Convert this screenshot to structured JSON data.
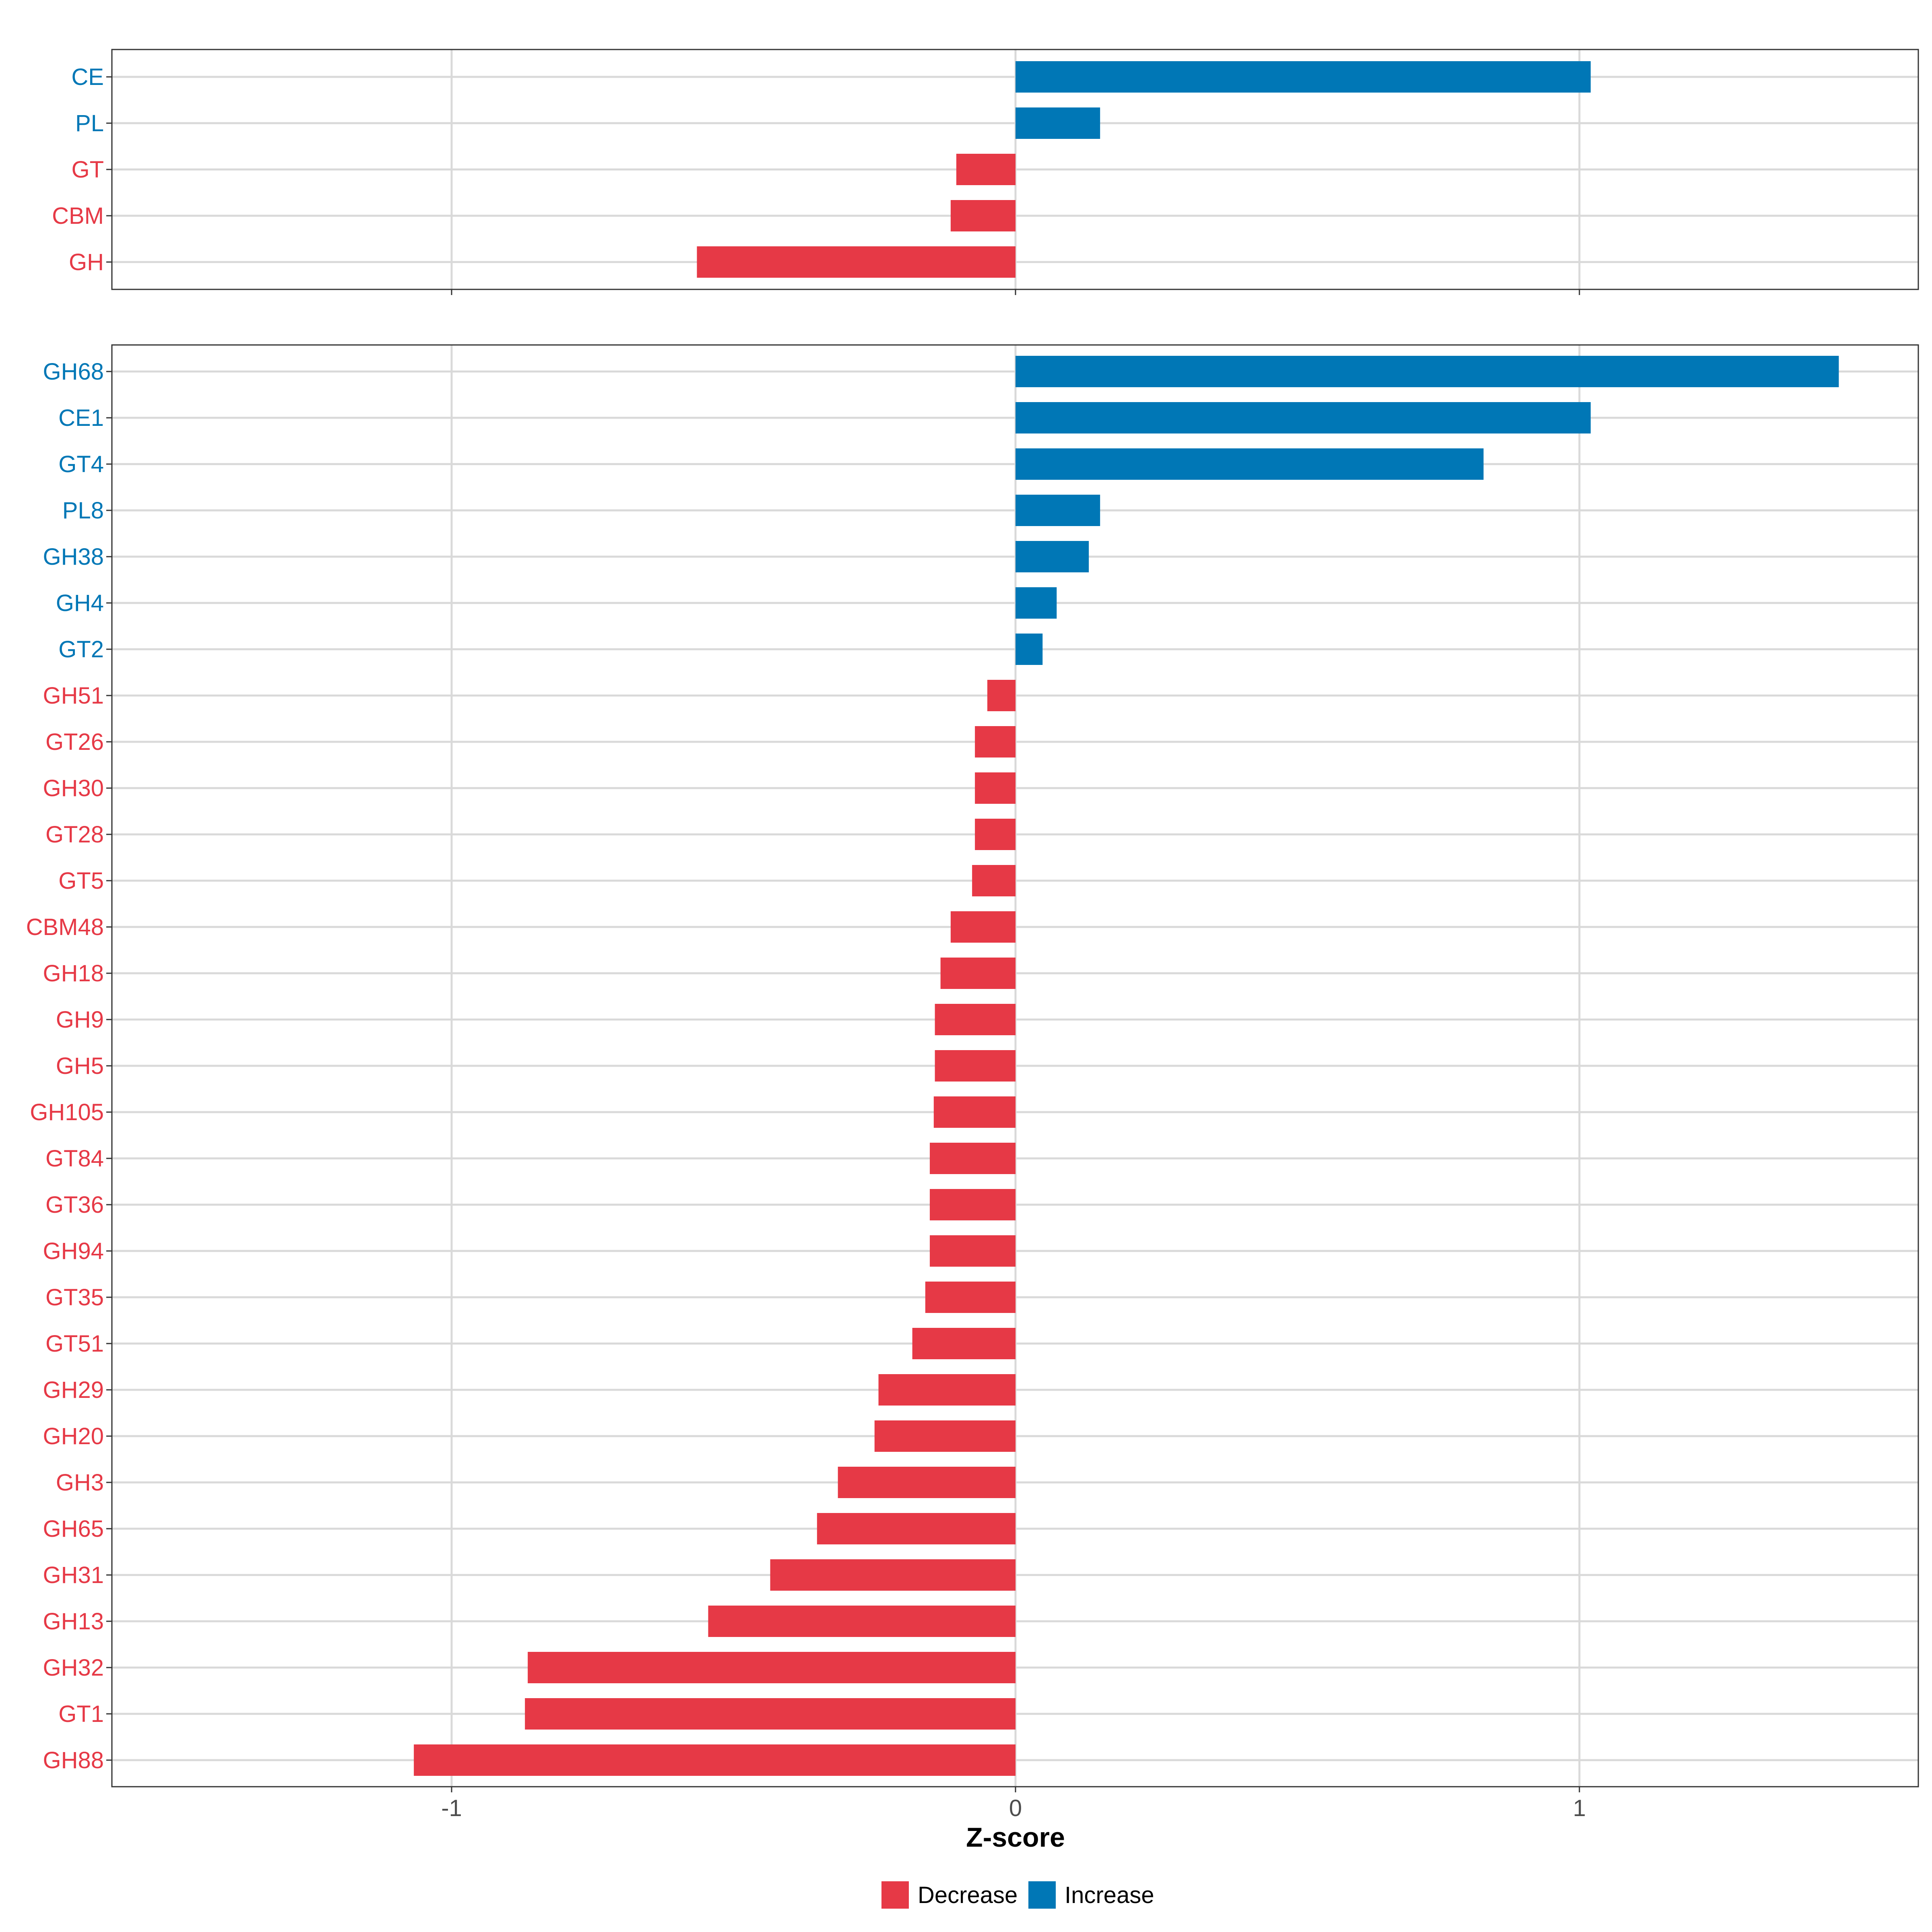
{
  "colors": {
    "decrease": "#e63946",
    "increase": "#0077b6"
  },
  "legend": [
    {
      "key": "decrease",
      "label": "Decrease"
    },
    {
      "key": "increase",
      "label": "Increase"
    }
  ],
  "chart_data": [
    {
      "type": "bar",
      "orientation": "horizontal",
      "panel": "top",
      "xlabel": "",
      "xlim": [
        -1.6,
        1.6
      ],
      "xticks": [
        -1,
        0,
        1
      ],
      "bars": [
        {
          "label": "CE",
          "value": 1.02,
          "group": "increase"
        },
        {
          "label": "PL",
          "value": 0.15,
          "group": "increase"
        },
        {
          "label": "GT",
          "value": -0.105,
          "group": "decrease"
        },
        {
          "label": "CBM",
          "value": -0.115,
          "group": "decrease"
        },
        {
          "label": "GH",
          "value": -0.565,
          "group": "decrease"
        }
      ]
    },
    {
      "type": "bar",
      "orientation": "horizontal",
      "panel": "bottom",
      "xlabel": "Z-score",
      "xlim": [
        -1.6,
        1.6
      ],
      "xticks": [
        -1,
        0,
        1
      ],
      "xtick_labels": [
        "-1",
        "0",
        "1"
      ],
      "bars": [
        {
          "label": "GH68",
          "value": 1.46,
          "group": "increase"
        },
        {
          "label": "CE1",
          "value": 1.02,
          "group": "increase"
        },
        {
          "label": "GT4",
          "value": 0.83,
          "group": "increase"
        },
        {
          "label": "PL8",
          "value": 0.15,
          "group": "increase"
        },
        {
          "label": "GH38",
          "value": 0.13,
          "group": "increase"
        },
        {
          "label": "GH4",
          "value": 0.073,
          "group": "increase"
        },
        {
          "label": "GT2",
          "value": 0.048,
          "group": "increase"
        },
        {
          "label": "GH51",
          "value": -0.05,
          "group": "decrease"
        },
        {
          "label": "GT26",
          "value": -0.072,
          "group": "decrease"
        },
        {
          "label": "GH30",
          "value": -0.072,
          "group": "decrease"
        },
        {
          "label": "GT28",
          "value": -0.072,
          "group": "decrease"
        },
        {
          "label": "GT5",
          "value": -0.077,
          "group": "decrease"
        },
        {
          "label": "CBM48",
          "value": -0.115,
          "group": "decrease"
        },
        {
          "label": "GH18",
          "value": -0.133,
          "group": "decrease"
        },
        {
          "label": "GH9",
          "value": -0.143,
          "group": "decrease"
        },
        {
          "label": "GH5",
          "value": -0.143,
          "group": "decrease"
        },
        {
          "label": "GH105",
          "value": -0.145,
          "group": "decrease"
        },
        {
          "label": "GT84",
          "value": -0.152,
          "group": "decrease"
        },
        {
          "label": "GT36",
          "value": -0.152,
          "group": "decrease"
        },
        {
          "label": "GH94",
          "value": -0.152,
          "group": "decrease"
        },
        {
          "label": "GT35",
          "value": -0.16,
          "group": "decrease"
        },
        {
          "label": "GT51",
          "value": -0.183,
          "group": "decrease"
        },
        {
          "label": "GH29",
          "value": -0.243,
          "group": "decrease"
        },
        {
          "label": "GH20",
          "value": -0.25,
          "group": "decrease"
        },
        {
          "label": "GH3",
          "value": -0.315,
          "group": "decrease"
        },
        {
          "label": "GH65",
          "value": -0.352,
          "group": "decrease"
        },
        {
          "label": "GH31",
          "value": -0.435,
          "group": "decrease"
        },
        {
          "label": "GH13",
          "value": -0.545,
          "group": "decrease"
        },
        {
          "label": "GH32",
          "value": -0.865,
          "group": "decrease"
        },
        {
          "label": "GT1",
          "value": -0.87,
          "group": "decrease"
        },
        {
          "label": "GH88",
          "value": -1.067,
          "group": "decrease"
        }
      ]
    }
  ]
}
